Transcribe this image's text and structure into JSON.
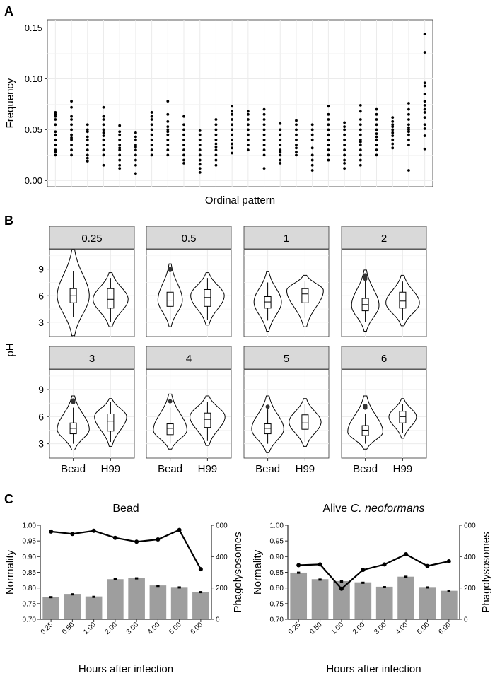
{
  "chart_data": [
    {
      "panel": "A",
      "type": "scatter",
      "xlabel": "Ordinal pattern",
      "ylabel": "Frequency",
      "yticks": [
        "0.00",
        "0.05",
        "0.10",
        "0.15"
      ],
      "ylim": [
        -0.006,
        0.158
      ],
      "groups": [
        [
          0.025,
          0.028,
          0.03,
          0.035,
          0.04,
          0.045,
          0.048,
          0.055,
          0.06,
          0.063,
          0.065,
          0.067
        ],
        [
          0.025,
          0.03,
          0.035,
          0.04,
          0.042,
          0.045,
          0.05,
          0.055,
          0.06,
          0.063,
          0.072,
          0.078
        ],
        [
          0.019,
          0.022,
          0.025,
          0.03,
          0.035,
          0.04,
          0.043,
          0.048,
          0.05,
          0.055
        ],
        [
          0.015,
          0.025,
          0.03,
          0.035,
          0.04,
          0.044,
          0.047,
          0.05,
          0.055,
          0.06,
          0.063,
          0.072
        ],
        [
          0.012,
          0.015,
          0.02,
          0.025,
          0.03,
          0.032,
          0.035,
          0.04,
          0.045,
          0.048,
          0.054
        ],
        [
          0.007,
          0.015,
          0.02,
          0.025,
          0.03,
          0.033,
          0.035,
          0.04,
          0.043,
          0.047
        ],
        [
          0.025,
          0.03,
          0.035,
          0.04,
          0.045,
          0.05,
          0.055,
          0.06,
          0.063,
          0.067
        ],
        [
          0.025,
          0.03,
          0.035,
          0.04,
          0.045,
          0.048,
          0.05,
          0.053,
          0.058,
          0.065,
          0.078
        ],
        [
          0.017,
          0.02,
          0.025,
          0.03,
          0.035,
          0.04,
          0.045,
          0.05,
          0.055,
          0.063
        ],
        [
          0.008,
          0.012,
          0.016,
          0.02,
          0.025,
          0.03,
          0.035,
          0.04,
          0.045,
          0.049
        ],
        [
          0.015,
          0.02,
          0.025,
          0.03,
          0.033,
          0.036,
          0.04,
          0.045,
          0.05,
          0.055,
          0.06
        ],
        [
          0.027,
          0.032,
          0.036,
          0.04,
          0.045,
          0.05,
          0.055,
          0.06,
          0.065,
          0.068,
          0.073
        ],
        [
          0.03,
          0.035,
          0.04,
          0.045,
          0.05,
          0.055,
          0.06,
          0.065,
          0.068
        ],
        [
          0.012,
          0.025,
          0.03,
          0.035,
          0.04,
          0.045,
          0.05,
          0.055,
          0.06,
          0.065,
          0.07
        ],
        [
          0.017,
          0.02,
          0.025,
          0.028,
          0.03,
          0.035,
          0.04,
          0.045,
          0.05,
          0.056
        ],
        [
          0.025,
          0.028,
          0.032,
          0.035,
          0.04,
          0.045,
          0.05,
          0.055,
          0.059
        ],
        [
          0.01,
          0.015,
          0.02,
          0.025,
          0.032,
          0.04,
          0.045,
          0.05,
          0.055
        ],
        [
          0.02,
          0.025,
          0.03,
          0.035,
          0.04,
          0.045,
          0.05,
          0.055,
          0.06,
          0.065,
          0.073
        ],
        [
          0.012,
          0.017,
          0.02,
          0.025,
          0.03,
          0.035,
          0.04,
          0.045,
          0.05,
          0.053,
          0.057
        ],
        [
          0.015,
          0.02,
          0.025,
          0.03,
          0.035,
          0.038,
          0.04,
          0.045,
          0.05,
          0.055,
          0.06,
          0.068,
          0.074
        ],
        [
          0.025,
          0.03,
          0.035,
          0.04,
          0.043,
          0.046,
          0.05,
          0.055,
          0.06,
          0.065,
          0.07
        ],
        [
          0.032,
          0.036,
          0.04,
          0.044,
          0.047,
          0.05,
          0.053,
          0.055,
          0.058,
          0.062
        ],
        [
          0.01,
          0.035,
          0.04,
          0.045,
          0.048,
          0.05,
          0.052,
          0.055,
          0.06,
          0.065,
          0.07,
          0.076
        ],
        [
          0.031,
          0.044,
          0.051,
          0.055,
          0.062,
          0.067,
          0.07,
          0.074,
          0.078,
          0.085,
          0.093,
          0.096,
          0.126,
          0.144
        ]
      ]
    },
    {
      "panel": "B",
      "type": "violin",
      "ylabel": "pH",
      "yticks": [
        3,
        6,
        9
      ],
      "ylim": [
        1.4,
        11.2
      ],
      "xcategories": [
        "Bead",
        "H99"
      ],
      "facets": [
        {
          "label": "0.25",
          "bead": {
            "min": 1.5,
            "max": 11.2,
            "q1": 5.2,
            "med": 6.0,
            "q3": 6.8,
            "wlo": 3.6,
            "whi": 8.8,
            "mode": 6.0,
            "halfwidth": 0.42,
            "out": []
          },
          "h99": {
            "min": 2.5,
            "max": 8.6,
            "q1": 4.6,
            "med": 5.6,
            "q3": 6.8,
            "wlo": 3.0,
            "whi": 8.0,
            "mode": 5.6,
            "halfwidth": 0.46,
            "out": []
          }
        },
        {
          "label": "0.5",
          "bead": {
            "min": 2.5,
            "max": 9.6,
            "q1": 4.8,
            "med": 5.5,
            "q3": 6.4,
            "wlo": 3.3,
            "whi": 8.6,
            "mode": 5.5,
            "halfwidth": 0.32,
            "out": [
              8.9,
              9.0
            ]
          },
          "h99": {
            "min": 2.7,
            "max": 8.6,
            "q1": 4.8,
            "med": 5.8,
            "q3": 6.7,
            "wlo": 3.3,
            "whi": 8.0,
            "mode": 6.0,
            "halfwidth": 0.44,
            "out": []
          }
        },
        {
          "label": "1",
          "bead": {
            "min": 2.0,
            "max": 8.7,
            "q1": 4.6,
            "med": 5.3,
            "q3": 5.9,
            "wlo": 3.2,
            "whi": 7.5,
            "mode": 5.3,
            "halfwidth": 0.36,
            "out": []
          },
          "h99": {
            "min": 2.5,
            "max": 8.3,
            "q1": 5.2,
            "med": 6.2,
            "q3": 6.8,
            "wlo": 3.5,
            "whi": 7.6,
            "mode": 6.6,
            "halfwidth": 0.48,
            "out": []
          }
        },
        {
          "label": "2",
          "bead": {
            "min": 2.0,
            "max": 8.9,
            "q1": 4.3,
            "med": 5.0,
            "q3": 5.7,
            "wlo": 3.0,
            "whi": 7.8,
            "mode": 4.9,
            "halfwidth": 0.36,
            "out": [
              7.9,
              8.1,
              8.3
            ]
          },
          "h99": {
            "min": 2.6,
            "max": 8.3,
            "q1": 4.6,
            "med": 5.4,
            "q3": 6.4,
            "wlo": 3.3,
            "whi": 7.6,
            "mode": 5.2,
            "halfwidth": 0.44,
            "out": []
          }
        },
        {
          "label": "3",
          "bead": {
            "min": 2.3,
            "max": 8.3,
            "q1": 4.1,
            "med": 4.7,
            "q3": 5.3,
            "wlo": 3.0,
            "whi": 7.0,
            "mode": 4.6,
            "halfwidth": 0.42,
            "out": [
              7.6,
              7.8
            ]
          },
          "h99": {
            "min": 2.7,
            "max": 8.0,
            "q1": 4.4,
            "med": 5.5,
            "q3": 6.3,
            "wlo": 3.2,
            "whi": 7.6,
            "mode": 6.0,
            "halfwidth": 0.42,
            "out": []
          }
        },
        {
          "label": "4",
          "bead": {
            "min": 2.4,
            "max": 8.5,
            "q1": 4.0,
            "med": 4.7,
            "q3": 5.2,
            "wlo": 3.0,
            "whi": 7.0,
            "mode": 4.5,
            "halfwidth": 0.44,
            "out": [
              7.7
            ]
          },
          "h99": {
            "min": 2.8,
            "max": 8.3,
            "q1": 4.8,
            "med": 5.7,
            "q3": 6.4,
            "wlo": 3.3,
            "whi": 7.6,
            "mode": 6.0,
            "halfwidth": 0.46,
            "out": []
          }
        },
        {
          "label": "5",
          "bead": {
            "min": 2.0,
            "max": 8.3,
            "q1": 4.1,
            "med": 4.7,
            "q3": 5.2,
            "wlo": 3.0,
            "whi": 6.8,
            "mode": 4.6,
            "halfwidth": 0.42,
            "out": [
              7.1
            ]
          },
          "h99": {
            "min": 2.7,
            "max": 8.0,
            "q1": 4.6,
            "med": 5.3,
            "q3": 6.2,
            "wlo": 3.2,
            "whi": 7.4,
            "mode": 5.4,
            "halfwidth": 0.42,
            "out": []
          }
        },
        {
          "label": "6",
          "bead": {
            "min": 2.4,
            "max": 8.3,
            "q1": 3.9,
            "med": 4.5,
            "q3": 5.0,
            "wlo": 3.0,
            "whi": 6.3,
            "mode": 4.3,
            "halfwidth": 0.46,
            "out": [
              7.0,
              7.2
            ]
          },
          "h99": {
            "min": 3.6,
            "max": 8.0,
            "q1": 5.3,
            "med": 6.0,
            "q3": 6.6,
            "wlo": 4.2,
            "whi": 7.4,
            "mode": 6.0,
            "halfwidth": 0.36,
            "out": []
          }
        }
      ]
    },
    {
      "panel": "C-left",
      "type": "bar+line",
      "title": "Bead",
      "xlabel": "Hours after infection",
      "ylabel_left": "Normality",
      "ylabel_right": "Phagolysosomes",
      "categories": [
        "0.25",
        "0.50",
        "1.00",
        "2.00",
        "3.00",
        "4.00",
        "5.00",
        "6.00"
      ],
      "ylim_left": [
        0.7,
        1.0
      ],
      "yticks_left": [
        "0.70",
        "0.75",
        "0.80",
        "0.85",
        "0.90",
        "0.95",
        "1.00"
      ],
      "ylim_right": [
        0,
        600
      ],
      "yticks_right": [
        "0",
        "200",
        "400",
        "600"
      ],
      "bars_normality": [
        0.772,
        0.781,
        0.773,
        0.828,
        0.831,
        0.808,
        0.803,
        0.788
      ],
      "bar_errors": [
        0.002,
        0.002,
        0.002,
        0.003,
        0.003,
        0.002,
        0.002,
        0.002
      ],
      "line_phagolysosomes": [
        560,
        545,
        565,
        520,
        495,
        510,
        570,
        320
      ]
    },
    {
      "panel": "C-right",
      "type": "bar+line",
      "title_plain": "Alive ",
      "title_italic": "C. neoformans",
      "xlabel": "Hours after infection",
      "ylabel_left": "Normality",
      "ylabel_right": "Phagolysosomes",
      "categories": [
        "0.25",
        "0.50",
        "1.00",
        "2.00",
        "3.00",
        "4.00",
        "5.00",
        "6.00"
      ],
      "ylim_left": [
        0.7,
        1.0
      ],
      "yticks_left": [
        "0.70",
        "0.75",
        "0.80",
        "0.85",
        "0.90",
        "0.95",
        "1.00"
      ],
      "ylim_right": [
        0,
        600
      ],
      "yticks_right": [
        "0",
        "200",
        "400",
        "600"
      ],
      "bars_normality": [
        0.849,
        0.828,
        0.822,
        0.818,
        0.804,
        0.836,
        0.803,
        0.791
      ],
      "bar_errors": [
        0.003,
        0.002,
        0.002,
        0.002,
        0.002,
        0.003,
        0.002,
        0.002
      ],
      "line_phagolysosomes": [
        345,
        350,
        195,
        315,
        350,
        415,
        340,
        370
      ]
    }
  ],
  "labels": {
    "a": "A",
    "b": "B",
    "c": "C"
  }
}
